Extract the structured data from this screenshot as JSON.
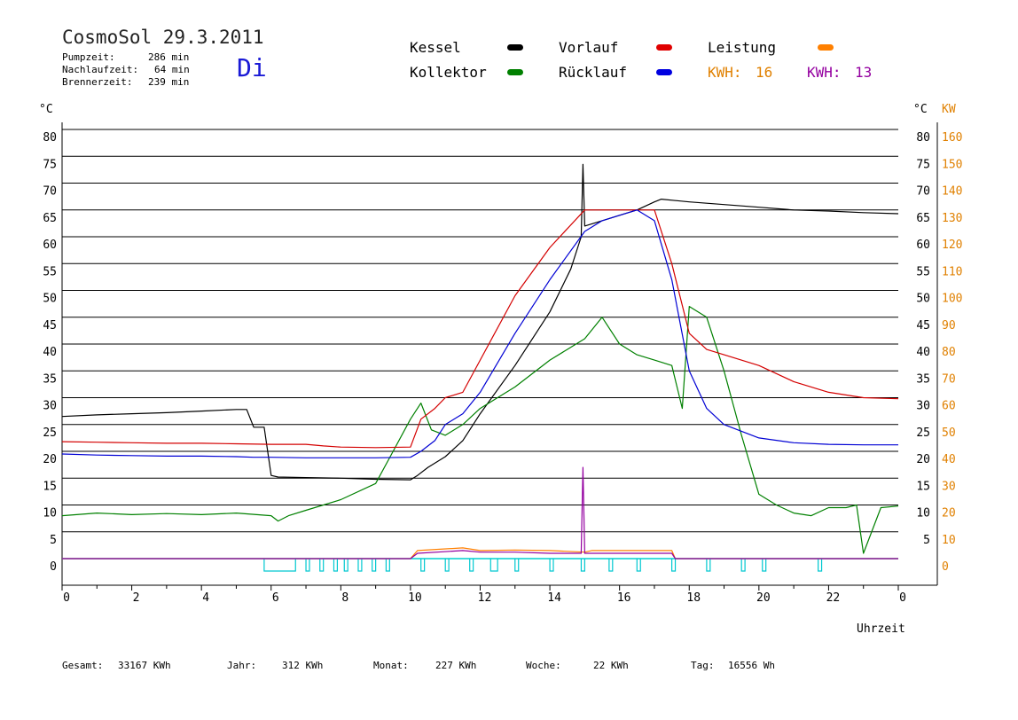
{
  "header": {
    "title": "CosmoSol 29.3.2011",
    "stats": [
      {
        "label": "Pumpzeit:",
        "value": "286 min"
      },
      {
        "label": "Nachlaufzeit:",
        "value": "64 min"
      },
      {
        "label": "Brennerzeit:",
        "value": "239 min"
      }
    ],
    "day": "Di"
  },
  "legend": {
    "kessel": {
      "label": "Kessel",
      "color": "#000000"
    },
    "kollektor": {
      "label": "Kollektor",
      "color": "#008000"
    },
    "vorlauf": {
      "label": "Vorlauf",
      "color": "#d40000"
    },
    "ruecklauf": {
      "label": "Rücklauf",
      "color": "#0000d4"
    },
    "leistung": {
      "label": "Leistung",
      "color": "#ff8000"
    },
    "kwh1": {
      "label": "KWH:",
      "value": "16",
      "color": "#ff8000"
    },
    "kwh2": {
      "label": "KWH:",
      "value": "13",
      "color": "#9400a0"
    }
  },
  "axes": {
    "left_unit": "°C",
    "right_unit": "°C",
    "right_unit2": "KW",
    "xlabel": "Uhrzeit",
    "left_ticks": [
      "0",
      "5",
      "10",
      "15",
      "20",
      "25",
      "30",
      "35",
      "40",
      "45",
      "50",
      "55",
      "60",
      "65",
      "70",
      "75",
      "80"
    ],
    "right_ticks": [
      "5",
      "10",
      "15",
      "20",
      "25",
      "30",
      "35",
      "40",
      "45",
      "50",
      "55",
      "60",
      "65",
      "70",
      "75",
      "80"
    ],
    "kw_ticks": [
      "0",
      "10",
      "20",
      "30",
      "40",
      "50",
      "60",
      "70",
      "80",
      "90",
      "100",
      "110",
      "120",
      "130",
      "140",
      "150",
      "160"
    ],
    "x_ticks": [
      "0",
      "2",
      "4",
      "6",
      "8",
      "10",
      "12",
      "14",
      "16",
      "18",
      "20",
      "22",
      "0"
    ]
  },
  "footer": [
    {
      "label": "Gesamt:",
      "value": "33167 KWh"
    },
    {
      "label": "Jahr:",
      "value": "312 KWh"
    },
    {
      "label": "Monat:",
      "value": "227 KWh"
    },
    {
      "label": "Woche:",
      "value": "22 KWh"
    },
    {
      "label": "Tag:",
      "value": "16556 Wh"
    }
  ],
  "chart_data": {
    "type": "line",
    "title": "CosmoSol 29.3.2011",
    "xlabel": "Uhrzeit",
    "ylabel": "°C",
    "xlim": [
      0,
      24
    ],
    "ylim": [
      0,
      80
    ],
    "grid": true,
    "series": [
      {
        "name": "Kessel",
        "color": "#000000",
        "x": [
          0,
          1,
          2,
          3,
          4,
          5,
          5.3,
          5.5,
          5.8,
          6.0,
          6.2,
          7,
          8,
          9,
          10,
          10.2,
          10.5,
          11,
          11.5,
          12,
          13,
          14,
          14.6,
          14.9,
          14.95,
          15.0,
          15.5,
          16,
          16.5,
          17,
          17.2,
          18,
          19,
          20,
          21,
          22,
          23,
          24
        ],
        "y": [
          26.5,
          26.8,
          27,
          27.2,
          27.5,
          27.8,
          27.8,
          24.5,
          24.5,
          15.5,
          15.2,
          15.1,
          15.0,
          14.8,
          14.7,
          15.5,
          17,
          19,
          22,
          27,
          36,
          46,
          54,
          60,
          73.5,
          62,
          63,
          64,
          65,
          66.5,
          67,
          66.5,
          66,
          65.5,
          65,
          64.8,
          64.5,
          64.3
        ]
      },
      {
        "name": "Kollektor",
        "color": "#008000",
        "x": [
          0,
          1,
          2,
          3,
          4,
          5,
          6,
          6.2,
          6.5,
          7,
          8,
          9,
          9.5,
          10,
          10.3,
          10.6,
          11,
          11.5,
          12,
          12.5,
          13,
          14,
          14.5,
          15,
          15.5,
          16,
          16.5,
          17,
          17.5,
          17.8,
          18,
          18.5,
          19,
          19.5,
          20,
          20.5,
          21,
          21.5,
          22,
          22.5,
          22.8,
          23,
          23.5,
          24
        ],
        "y": [
          8,
          8.5,
          8.2,
          8.4,
          8.2,
          8.5,
          8,
          7,
          8,
          9,
          11,
          14,
          20,
          26,
          29,
          24,
          23,
          25,
          28,
          30,
          32,
          37,
          39,
          41,
          45,
          40,
          38,
          37,
          36,
          28,
          47,
          45,
          35,
          23,
          12,
          10,
          8.5,
          8,
          9.5,
          9.5,
          10,
          1,
          9.5,
          9.8
        ]
      },
      {
        "name": "Vorlauf",
        "color": "#d40000",
        "x": [
          0,
          1,
          2,
          3,
          4,
          5,
          6,
          7,
          7.5,
          8,
          9,
          10,
          10.3,
          10.7,
          11,
          11.5,
          12,
          13,
          14,
          15,
          15.5,
          16,
          16.5,
          17,
          17.5,
          18,
          18.5,
          19,
          20,
          21,
          22,
          23,
          24
        ],
        "y": [
          21.8,
          21.7,
          21.6,
          21.5,
          21.5,
          21.4,
          21.3,
          21.3,
          21,
          20.8,
          20.7,
          20.8,
          26,
          28,
          30,
          31,
          37,
          49,
          58,
          65,
          65,
          65,
          65,
          65,
          55,
          42,
          39,
          38,
          36,
          33,
          31,
          30,
          29.8
        ]
      },
      {
        "name": "Rücklauf",
        "color": "#0000d4",
        "x": [
          0,
          1,
          2,
          3,
          4,
          5,
          5.5,
          6,
          7,
          8,
          9,
          10,
          10.3,
          10.7,
          11,
          11.5,
          12,
          13,
          14,
          15,
          15.5,
          16,
          16.5,
          17,
          17.5,
          18,
          18.5,
          19,
          20,
          21,
          22,
          23,
          24
        ],
        "y": [
          19.5,
          19.3,
          19.2,
          19.1,
          19.1,
          19.0,
          18.9,
          18.9,
          18.8,
          18.8,
          18.8,
          18.9,
          20,
          22,
          25,
          27,
          31,
          42,
          52,
          61,
          63,
          64,
          65,
          63,
          52,
          35,
          28,
          25,
          22.5,
          21.6,
          21.3,
          21.2,
          21.2
        ]
      },
      {
        "name": "Leistung",
        "color": "#ff8000",
        "x": [
          0,
          10,
          10.2,
          11.5,
          12,
          13,
          14,
          15,
          15.2,
          17.5,
          17.6,
          24
        ],
        "y": [
          0,
          0,
          1.5,
          2,
          1.5,
          1.6,
          1.5,
          1.2,
          1.5,
          1.5,
          0,
          0
        ]
      },
      {
        "name": "KWH 13",
        "color": "#9400a0",
        "x": [
          0,
          10,
          10.2,
          11.5,
          12,
          13,
          14,
          14.9,
          14.95,
          15.0,
          15.2,
          17.5,
          17.6,
          24
        ],
        "y": [
          0,
          0,
          1,
          1.5,
          1.2,
          1.2,
          1,
          1,
          17,
          1,
          1,
          1,
          0,
          0
        ]
      }
    ],
    "pump_segments": [
      [
        5.8,
        6.7
      ],
      [
        7.0,
        7.1
      ],
      [
        7.4,
        7.5
      ],
      [
        7.8,
        7.9
      ],
      [
        8.1,
        8.2
      ],
      [
        8.5,
        8.6
      ],
      [
        8.9,
        9.0
      ],
      [
        9.3,
        9.4
      ],
      [
        10.3,
        10.4
      ],
      [
        11.0,
        11.1
      ],
      [
        11.7,
        11.8
      ],
      [
        12.3,
        12.5
      ],
      [
        13.0,
        13.1
      ],
      [
        14.0,
        14.1
      ],
      [
        14.9,
        15.0
      ],
      [
        15.7,
        15.8
      ],
      [
        16.5,
        16.6
      ],
      [
        17.5,
        17.6
      ],
      [
        18.5,
        18.6
      ],
      [
        19.5,
        19.6
      ],
      [
        20.1,
        20.2
      ],
      [
        21.7,
        21.8
      ]
    ]
  }
}
